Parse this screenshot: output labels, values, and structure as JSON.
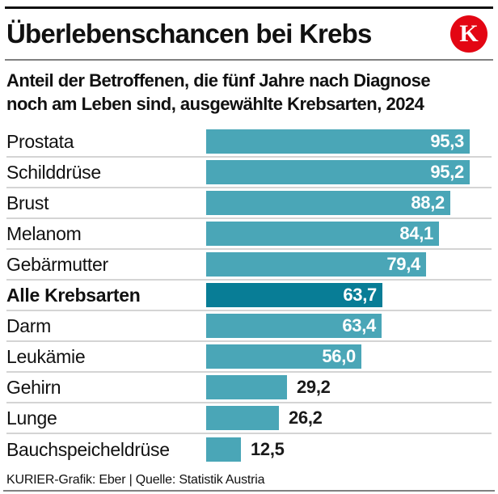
{
  "header": {
    "title": "Überlebenschancen bei Krebs",
    "logo_letter": "K"
  },
  "subtitle_lines": [
    "Anteil der Betroffenen, die fünf Jahre nach Diagnose",
    "noch am Leben sind, ausgewählte Krebsarten, 2024"
  ],
  "footer": {
    "credit": "KURIER-Grafik: Eber | Quelle: Statistik Austria"
  },
  "colors": {
    "bar": "#4aa6b7",
    "bar_emphasis": "#087d96",
    "logo_red": "#e30613",
    "value_inside": "#ffffff",
    "value_outside": "#1a1a1a",
    "row_separator": "#d4d4d4",
    "top_rule": "#111111",
    "header_divider": "#808080",
    "bottom_rule": "#808080"
  },
  "chart_data": {
    "type": "bar",
    "orientation": "horizontal",
    "title": "Überlebenschancen bei Krebs",
    "subtitle": "Anteil der Betroffenen, die fünf Jahre nach Diagnose noch am Leben sind, ausgewählte Krebsarten, 2024",
    "categories": [
      "Prostata",
      "Schilddrüse",
      "Brust",
      "Melanom",
      "Gebärmutter",
      "Alle Krebsarten",
      "Darm",
      "Leukämie",
      "Gehirn",
      "Lunge",
      "Bauchspeicheldrüse"
    ],
    "values": [
      95.3,
      95.2,
      88.2,
      84.1,
      79.4,
      63.7,
      63.4,
      56.0,
      29.2,
      26.2,
      12.5
    ],
    "value_labels": [
      "95,3",
      "95,2",
      "88,2",
      "84,1",
      "79,4",
      "63,7",
      "63,4",
      "56,0",
      "29,2",
      "26,2",
      "12,5"
    ],
    "emphasis_index": 5,
    "xlim": [
      0,
      100
    ],
    "grid": false,
    "legend": false,
    "value_label_position_rule": "inside-right for long bars, outside-right black for short bars"
  }
}
